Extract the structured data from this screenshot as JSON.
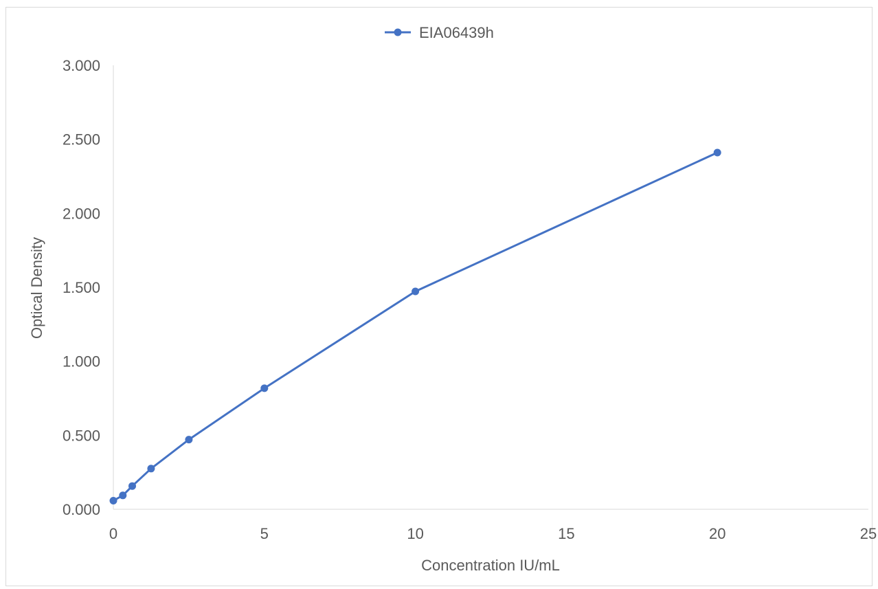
{
  "chart_data": {
    "type": "line",
    "title": "",
    "xlabel": "Concentration IU/mL",
    "ylabel": "Optical Density",
    "xlim": [
      0,
      25
    ],
    "ylim": [
      0,
      3
    ],
    "x_ticks": [
      "0",
      "5",
      "10",
      "15",
      "20",
      "25"
    ],
    "y_ticks": [
      "0.000",
      "0.500",
      "1.000",
      "1.500",
      "2.000",
      "2.500",
      "3.000"
    ],
    "grid": false,
    "legend_position": "top-center",
    "series": [
      {
        "name": "EIA06439h",
        "color": "#4472C4",
        "x": [
          0,
          0.313,
          0.625,
          1.25,
          2.5,
          5,
          10,
          20
        ],
        "y": [
          0.058,
          0.094,
          0.157,
          0.275,
          0.471,
          0.818,
          1.472,
          2.41
        ]
      }
    ]
  }
}
